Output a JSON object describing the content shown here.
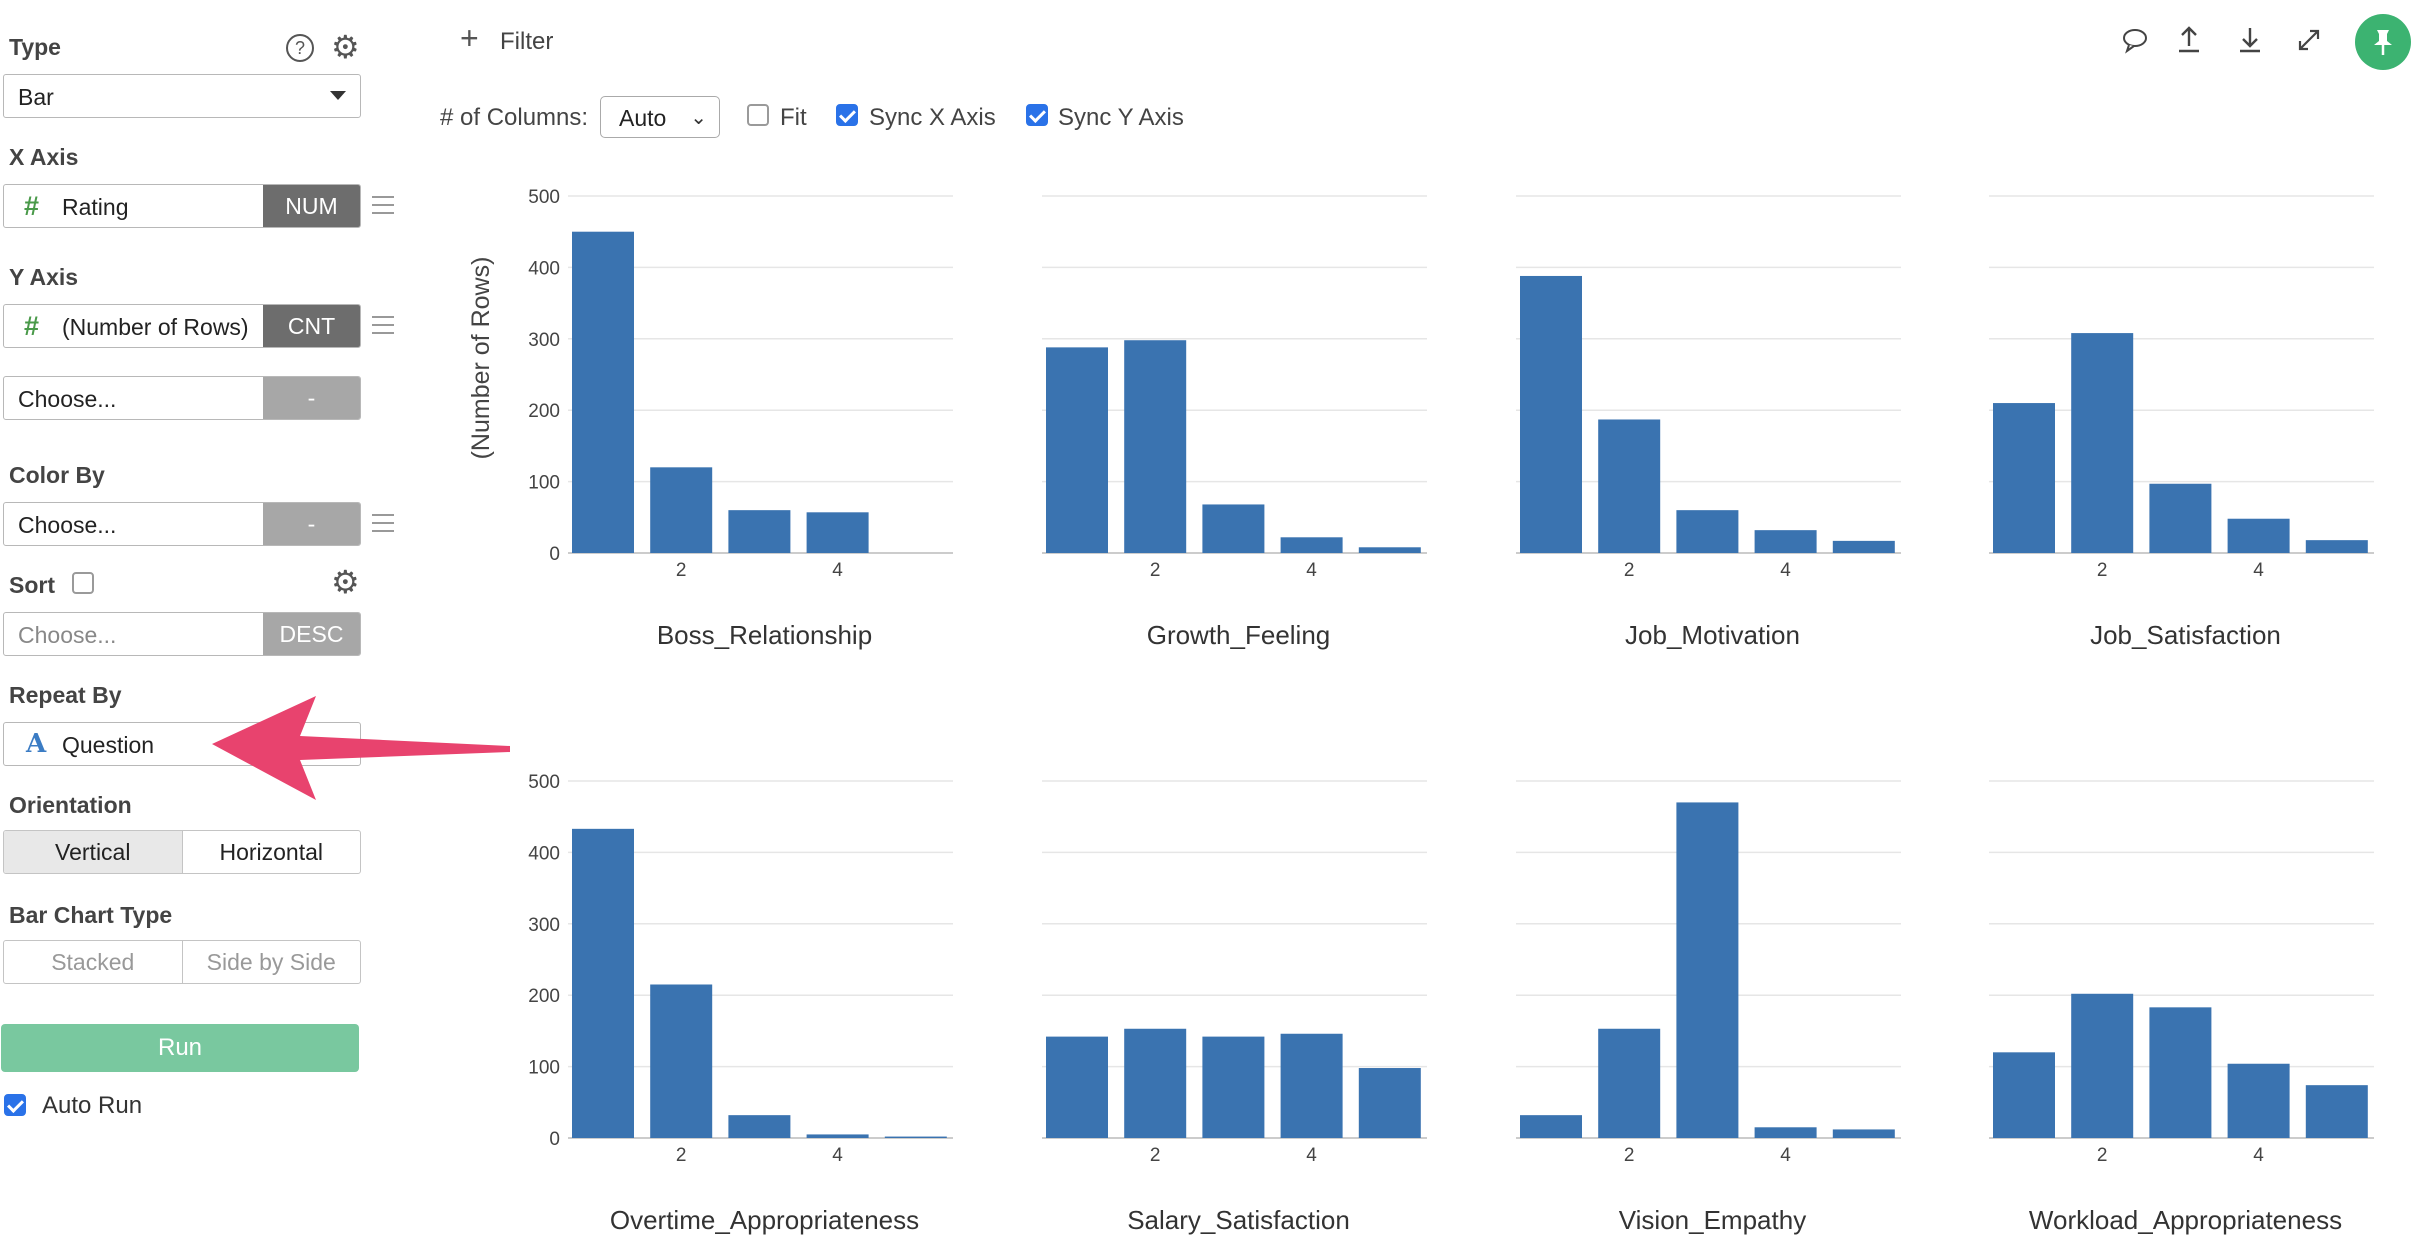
{
  "sidebar": {
    "type_label": "Type",
    "type_value": "Bar",
    "x_axis_label": "X Axis",
    "x_field": "Rating",
    "x_tag": "NUM",
    "y_axis_label": "Y Axis",
    "y_field": "(Number of Rows)",
    "y_tag": "CNT",
    "y2_placeholder": "Choose...",
    "y2_tag": "-",
    "color_by_label": "Color By",
    "color_placeholder": "Choose...",
    "color_tag": "-",
    "sort_label": "Sort",
    "sort_placeholder": "Choose...",
    "sort_tag": "DESC",
    "repeat_by_label": "Repeat By",
    "repeat_field": "Question",
    "orientation_label": "Orientation",
    "orientation_options": [
      "Vertical",
      "Horizontal"
    ],
    "bar_type_label": "Bar Chart Type",
    "bar_type_options": [
      "Stacked",
      "Side by Side"
    ],
    "run_label": "Run",
    "auto_run_label": "Auto Run"
  },
  "toolbar": {
    "filter_label": "Filter",
    "columns_label": "# of Columns:",
    "columns_value": "Auto",
    "fit_label": "Fit",
    "sync_x_label": "Sync X Axis",
    "sync_y_label": "Sync Y Axis",
    "fit_checked": false,
    "sync_x_checked": true,
    "sync_y_checked": true
  },
  "colors": {
    "bar": "#3a73b0",
    "run": "#79c89f",
    "pin": "#3cb371",
    "arrow": "#e8436e",
    "check": "#2a72e8"
  },
  "chart_data": {
    "type": "bar",
    "ylabel": "(Number of Rows)",
    "ylim": [
      0,
      500
    ],
    "yticks": [
      0,
      100,
      200,
      300,
      400,
      500
    ],
    "x": [
      1,
      2,
      3,
      4,
      5
    ],
    "xticks": [
      2,
      4
    ],
    "series": [
      {
        "name": "Boss_Relationship",
        "values": [
          450,
          120,
          60,
          57,
          0
        ]
      },
      {
        "name": "Growth_Feeling",
        "values": [
          288,
          298,
          68,
          22,
          8
        ]
      },
      {
        "name": "Job_Motivation",
        "values": [
          388,
          187,
          60,
          32,
          17
        ]
      },
      {
        "name": "Job_Satisfaction",
        "values": [
          210,
          308,
          97,
          48,
          18
        ]
      },
      {
        "name": "Overtime_Appropriateness",
        "values": [
          433,
          215,
          32,
          5,
          2
        ]
      },
      {
        "name": "Salary_Satisfaction",
        "values": [
          142,
          153,
          142,
          146,
          98
        ]
      },
      {
        "name": "Vision_Empathy",
        "values": [
          32,
          153,
          470,
          15,
          12
        ]
      },
      {
        "name": "Workload_Appropriateness",
        "values": [
          120,
          202,
          183,
          104,
          74
        ]
      }
    ]
  }
}
